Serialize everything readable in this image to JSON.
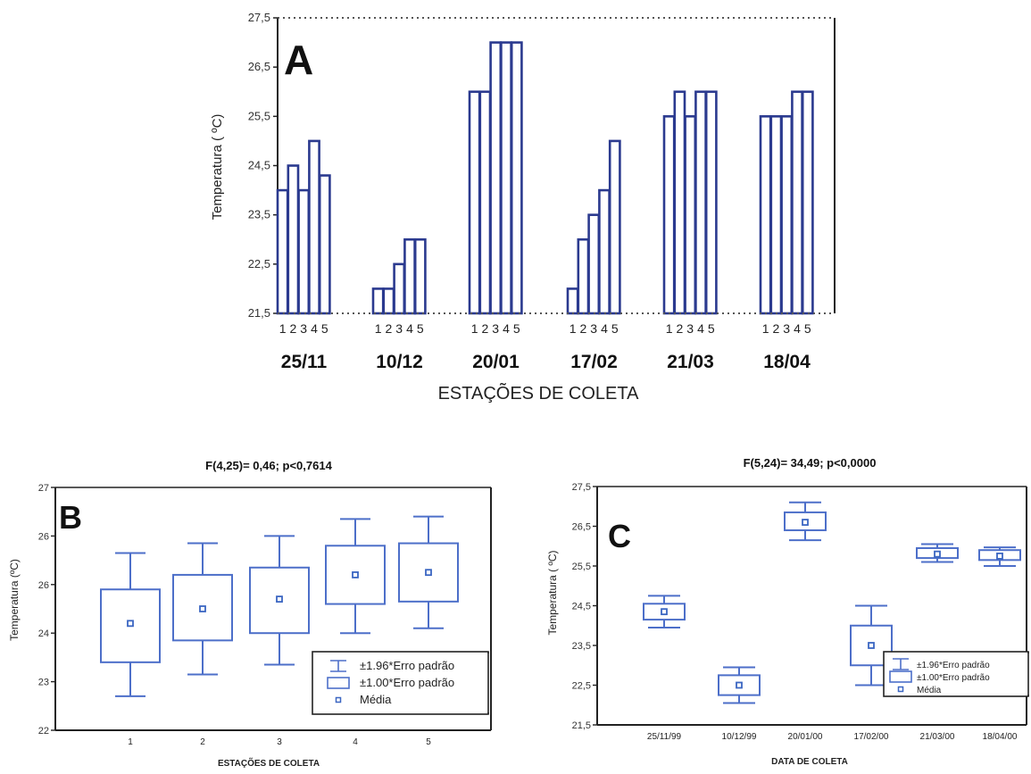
{
  "colors": {
    "bar_stroke": "#2b3a8f",
    "box_stroke": "#4d6fc9",
    "axis": "#222222",
    "mean": "#3b66c2"
  },
  "chart_data": [
    {
      "type": "bar",
      "panel_letter": "A",
      "title": "",
      "ylabel": "Temperatura ( ºC)",
      "xlabel": "ESTAÇÕES DE COLETA",
      "ylim": [
        21.5,
        27.5
      ],
      "yticks": [
        "21,5",
        "22,5",
        "23,5",
        "24,5",
        "25,5",
        "26,5",
        "27,5"
      ],
      "yticks_values": [
        21.5,
        22.5,
        23.5,
        24.5,
        25.5,
        26.5,
        27.5
      ],
      "station_labels": [
        "1",
        "2",
        "3",
        "4",
        "5"
      ],
      "groups": [
        {
          "date": "25/11",
          "values": [
            24.0,
            24.5,
            24.0,
            25.0,
            24.3
          ]
        },
        {
          "date": "10/12",
          "values": [
            22.0,
            22.0,
            22.5,
            23.0,
            23.0
          ]
        },
        {
          "date": "20/01",
          "values": [
            26.0,
            26.0,
            27.0,
            27.0,
            27.0
          ]
        },
        {
          "date": "17/02",
          "values": [
            22.0,
            23.0,
            23.5,
            24.0,
            25.0
          ]
        },
        {
          "date": "21/03",
          "values": [
            25.5,
            26.0,
            25.5,
            26.0,
            26.0
          ]
        },
        {
          "date": "18/04",
          "values": [
            25.5,
            25.5,
            25.5,
            26.0,
            26.0
          ]
        }
      ]
    },
    {
      "type": "box",
      "panel_letter": "B",
      "title": "F(4,25)= 0,46; p<0,7614",
      "ylabel": "Temperatura (ºC)",
      "xlabel": "ESTAÇÕES DE COLETA",
      "ylim": [
        22,
        27
      ],
      "yticks": [
        "22",
        "23",
        "24",
        "25",
        "26",
        "27"
      ],
      "yticks_labels": [
        "22",
        "23",
        "24",
        "26",
        "26",
        "27"
      ],
      "categories": [
        "1",
        "2",
        "3",
        "4",
        "5"
      ],
      "stats": [
        {
          "mean": 24.2,
          "se1_low": 23.4,
          "se1_high": 24.9,
          "ci_low": 22.7,
          "ci_high": 25.65
        },
        {
          "mean": 24.5,
          "se1_low": 23.85,
          "se1_high": 25.2,
          "ci_low": 23.15,
          "ci_high": 25.85
        },
        {
          "mean": 24.7,
          "se1_low": 24.0,
          "se1_high": 25.35,
          "ci_low": 23.35,
          "ci_high": 26.0
        },
        {
          "mean": 25.2,
          "se1_low": 24.6,
          "se1_high": 25.8,
          "ci_low": 24.0,
          "ci_high": 26.35
        },
        {
          "mean": 25.25,
          "se1_low": 24.65,
          "se1_high": 25.85,
          "ci_low": 24.1,
          "ci_high": 26.4
        }
      ],
      "legend": [
        "±1.96*Erro padrão",
        "±1.00*Erro padrão",
        "Média"
      ]
    },
    {
      "type": "box",
      "panel_letter": "C",
      "title": "F(5,24)= 34,49; p<0,0000",
      "ylabel": "Temperatura ( ºC)",
      "xlabel": "DATA DE COLETA",
      "ylim": [
        21.5,
        27.5
      ],
      "yticks": [
        "21,5",
        "22,5",
        "23,5",
        "24,5",
        "25,5",
        "26,5",
        "27,5"
      ],
      "yticks_values": [
        21.5,
        22.5,
        23.5,
        24.5,
        25.5,
        26.5,
        27.5
      ],
      "categories": [
        "25/11/99",
        "10/12/99",
        "20/01/00",
        "17/02/00",
        "21/03/00",
        "18/04/00"
      ],
      "stats": [
        {
          "mean": 24.35,
          "se1_low": 24.15,
          "se1_high": 24.55,
          "ci_low": 23.95,
          "ci_high": 24.75
        },
        {
          "mean": 22.5,
          "se1_low": 22.25,
          "se1_high": 22.75,
          "ci_low": 22.05,
          "ci_high": 22.95
        },
        {
          "mean": 26.6,
          "se1_low": 26.4,
          "se1_high": 26.85,
          "ci_low": 26.15,
          "ci_high": 27.1
        },
        {
          "mean": 23.5,
          "se1_low": 23.0,
          "se1_high": 24.0,
          "ci_low": 22.5,
          "ci_high": 24.5
        },
        {
          "mean": 25.8,
          "se1_low": 25.7,
          "se1_high": 25.95,
          "ci_low": 25.6,
          "ci_high": 26.05
        },
        {
          "mean": 25.75,
          "se1_low": 25.65,
          "se1_high": 25.9,
          "ci_low": 25.5,
          "ci_high": 25.97
        }
      ],
      "legend": [
        "±1.96*Erro padrão",
        "±1.00*Erro padrão",
        "Média"
      ]
    }
  ]
}
